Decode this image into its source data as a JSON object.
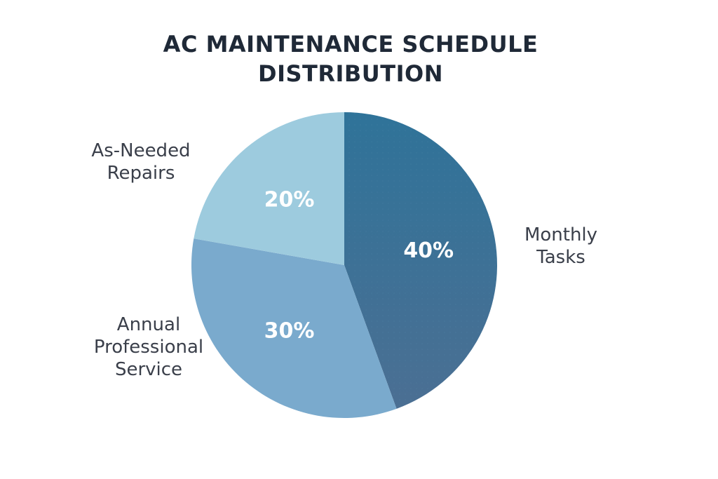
{
  "chart_data": {
    "type": "pie",
    "title_lines": [
      "AC MAINTENANCE SCHEDULE",
      "DISTRIBUTION"
    ],
    "slices": [
      {
        "label_lines": [
          "Monthly",
          "Tasks"
        ],
        "value": 40,
        "display": "40%",
        "color": "#3a7396"
      },
      {
        "label_lines": [
          "Annual",
          "Professional",
          "Service"
        ],
        "value": 30,
        "display": "30%",
        "color": "#7aaacd"
      },
      {
        "label_lines": [
          "As-Needed",
          "Repairs"
        ],
        "value": 20,
        "display": "20%",
        "color": "#9dcbde"
      }
    ],
    "start_angle_deg": 0,
    "direction": "clockwise"
  }
}
